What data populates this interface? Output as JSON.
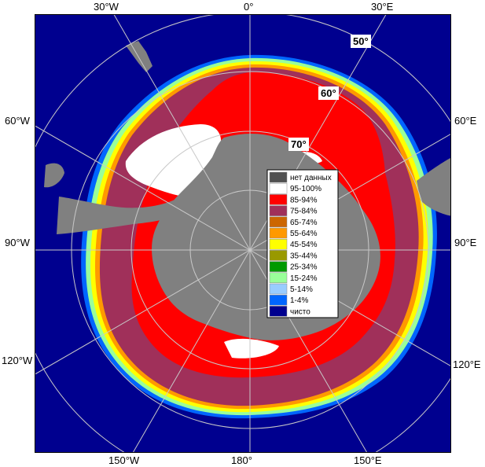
{
  "map": {
    "edge_labels": {
      "top_30w": "30°W",
      "top_0": "0°",
      "top_30e": "30°E",
      "left_60w": "60°W",
      "left_90w": "90°W",
      "left_120w": "120°W",
      "right_60e": "60°E",
      "right_90e": "90°E",
      "right_120e": "120°E",
      "bottom_150w": "150°W",
      "bottom_180": "180°",
      "bottom_150e": "150°E"
    },
    "lat_labels": {
      "lat50": "50°",
      "lat60": "60°",
      "lat70": "70°"
    },
    "colors": {
      "ocean_clear": "#00008f",
      "land_nodata": "#808080",
      "ice_95_100": "#ffffff",
      "ice_85_94": "#ff0000",
      "ice_75_84": "#a0305a",
      "ice_65_74": "#cc6600",
      "ice_55_64": "#ff9900",
      "ice_45_54": "#ffff00",
      "ice_35_44": "#999900",
      "ice_25_34": "#009900",
      "ice_15_24": "#99ff99",
      "ice_5_14": "#99ccff",
      "ice_1_4": "#0066ff",
      "grid": "#c8c8c8"
    }
  },
  "legend": {
    "items": [
      {
        "label": "нет данных",
        "color": "#505050"
      },
      {
        "label": "95-100%",
        "color": "#ffffff"
      },
      {
        "label": "85-94%",
        "color": "#ff0000"
      },
      {
        "label": "75-84%",
        "color": "#a0305a"
      },
      {
        "label": "65-74%",
        "color": "#cc6600"
      },
      {
        "label": "55-64%",
        "color": "#ff9900"
      },
      {
        "label": "45-54%",
        "color": "#ffff00"
      },
      {
        "label": "35-44%",
        "color": "#999900"
      },
      {
        "label": "25-34%",
        "color": "#009900"
      },
      {
        "label": "15-24%",
        "color": "#99ff99"
      },
      {
        "label": "5-14%",
        "color": "#99ccff"
      },
      {
        "label": "1-4%",
        "color": "#0066ff"
      },
      {
        "label": "чисто",
        "color": "#00008f"
      }
    ]
  }
}
